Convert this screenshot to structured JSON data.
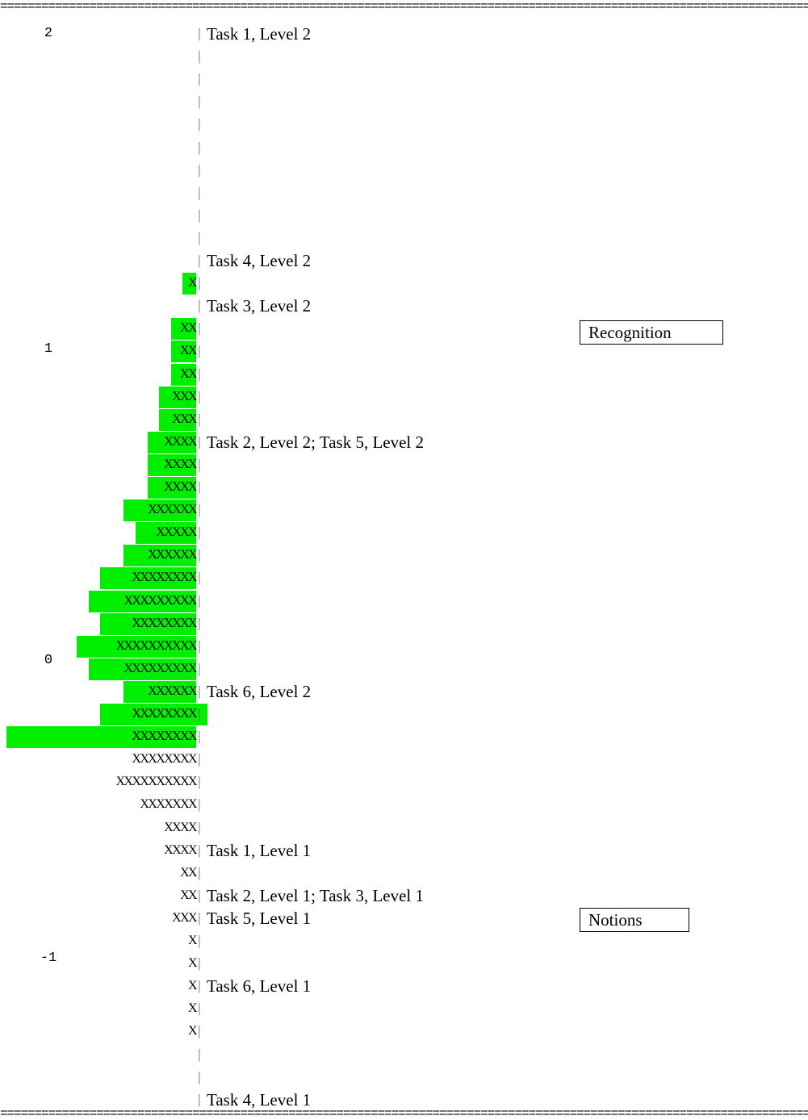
{
  "chart_data": {
    "type": "wright-map",
    "rule_char": "=",
    "y_ticks": [
      "2",
      "1",
      "0",
      "-1"
    ],
    "scale_range": [
      -1.65,
      2.0
    ],
    "rows": [
      {
        "persons": "",
        "items": "Task 1, Level 2"
      },
      {
        "persons": "",
        "items": ""
      },
      {
        "persons": "",
        "items": ""
      },
      {
        "persons": "",
        "items": ""
      },
      {
        "persons": "",
        "items": ""
      },
      {
        "persons": "",
        "items": ""
      },
      {
        "persons": "",
        "items": ""
      },
      {
        "persons": "",
        "items": ""
      },
      {
        "persons": "",
        "items": ""
      },
      {
        "persons": "",
        "items": ""
      },
      {
        "persons": "",
        "items": "Task 4, Level 2"
      },
      {
        "persons": "X",
        "items": ""
      },
      {
        "persons": "",
        "items": "Task 3, Level 2"
      },
      {
        "persons": "XX",
        "items": ""
      },
      {
        "persons": "XX",
        "items": ""
      },
      {
        "persons": "XX",
        "items": ""
      },
      {
        "persons": "XXX",
        "items": ""
      },
      {
        "persons": "XXX",
        "items": ""
      },
      {
        "persons": "XXXX",
        "items": "Task 2, Level 2; Task 5, Level 2"
      },
      {
        "persons": "XXXX",
        "items": ""
      },
      {
        "persons": "XXXX",
        "items": ""
      },
      {
        "persons": "XXXXXX",
        "items": ""
      },
      {
        "persons": "XXXXX",
        "items": ""
      },
      {
        "persons": "XXXXXX",
        "items": ""
      },
      {
        "persons": "XXXXXXXX",
        "items": ""
      },
      {
        "persons": "XXXXXXXXX",
        "items": ""
      },
      {
        "persons": "XXXXXXXX",
        "items": ""
      },
      {
        "persons": "XXXXXXXXXX",
        "items": ""
      },
      {
        "persons": "XXXXXXXXX",
        "items": ""
      },
      {
        "persons": "XXXXXX",
        "items": "Task 6, Level 2"
      },
      {
        "persons": "XXXXXXXX",
        "items": ""
      },
      {
        "persons": "XXXXXXXX",
        "items": ""
      },
      {
        "persons": "XXXXXXXX",
        "items": ""
      },
      {
        "persons": "XXXXXXXXXX",
        "items": ""
      },
      {
        "persons": "XXXXXXX",
        "items": ""
      },
      {
        "persons": "XXXX",
        "items": ""
      },
      {
        "persons": "XXXX",
        "items": "Task 1, Level 1"
      },
      {
        "persons": "XX",
        "items": ""
      },
      {
        "persons": "XX",
        "items": "Task 2, Level 1; Task 3, Level 1"
      },
      {
        "persons": "XXX",
        "items": "Task 5, Level 1"
      },
      {
        "persons": "X",
        "items": ""
      },
      {
        "persons": "X",
        "items": ""
      },
      {
        "persons": "X",
        "items": "Task 6, Level 1"
      },
      {
        "persons": "X",
        "items": ""
      },
      {
        "persons": "X",
        "items": ""
      },
      {
        "persons": "",
        "items": ""
      },
      {
        "persons": "",
        "items": ""
      },
      {
        "persons": "",
        "items": "Task 4, Level 1"
      }
    ],
    "highlight": {
      "color": "#00ee00",
      "first_row": 11,
      "last_row": 31,
      "note_rows": [
        30,
        31
      ]
    },
    "legend": [
      {
        "label": "Recognition"
      },
      {
        "label": "Notions"
      }
    ]
  }
}
